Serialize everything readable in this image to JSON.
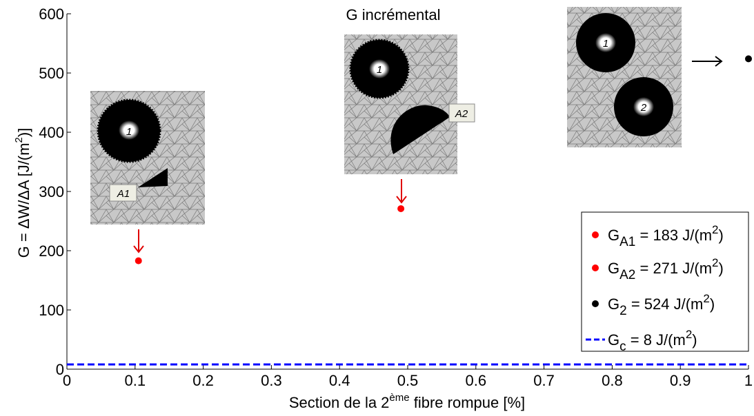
{
  "chart_data": {
    "type": "scatter",
    "xlim": [
      0,
      1
    ],
    "ylim": [
      0,
      600
    ],
    "xticks": [
      0,
      0.1,
      0.2,
      0.3,
      0.4,
      0.5,
      0.6,
      0.7,
      0.8,
      0.9,
      1
    ],
    "yticks": [
      0,
      100,
      200,
      300,
      400,
      500,
      600
    ],
    "xlabel": [
      "Section de la 2",
      "ème",
      " fibre rompue [%]"
    ],
    "ylabel": [
      "G = ΔW/ΔA [J/(m",
      "2",
      ")]"
    ],
    "annotations": {
      "title": "G incrémental",
      "labels": [
        "1",
        "A1",
        "1",
        "A2",
        "1",
        "2"
      ]
    },
    "legend": "lower right",
    "series": [
      {
        "name": [
          "G",
          "A1",
          " = 183 J/(m",
          "2",
          ")"
        ],
        "color": "#ff0000",
        "x": [
          0.105
        ],
        "values": [
          183
        ]
      },
      {
        "name": [
          "G",
          "A2",
          " = 271 J/(m",
          "2",
          ")"
        ],
        "color": "#ff0000",
        "x": [
          0.49
        ],
        "values": [
          271
        ]
      },
      {
        "name": [
          "G",
          "2",
          " = 524 J/(m",
          "2",
          ")"
        ],
        "color": "#000000",
        "x": [
          1.0
        ],
        "values": [
          524
        ]
      },
      {
        "name": [
          "G",
          "c",
          " = 8 J/(m",
          "2",
          ")"
        ],
        "color": "#0000ff",
        "x": [
          0,
          1
        ],
        "values": [
          8,
          8
        ],
        "style": "dashed"
      }
    ]
  }
}
